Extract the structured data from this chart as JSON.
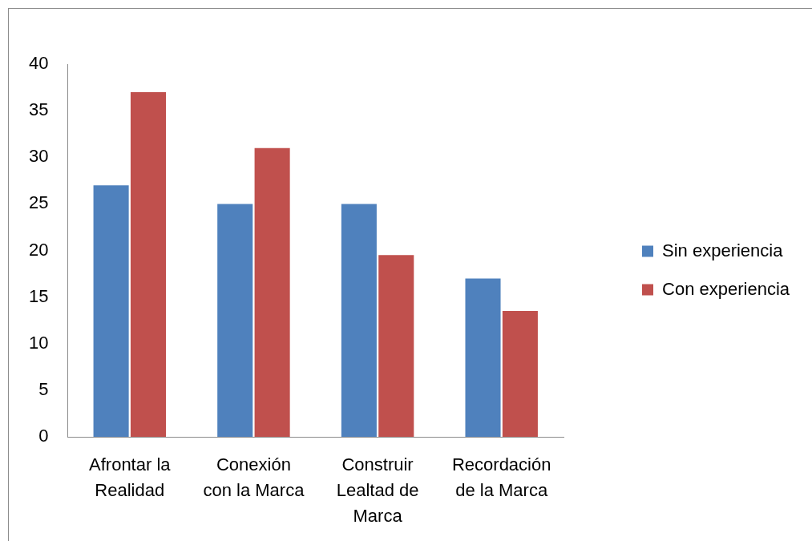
{
  "chart_data": {
    "type": "bar",
    "categories": [
      "Afrontar la Realidad",
      "Conexión con la Marca",
      "Construir Lealtad de Marca",
      "Recordación de la Marca"
    ],
    "series": [
      {
        "name": "Sin experiencia",
        "color": "#4f81bd",
        "values": [
          27,
          25,
          25,
          17
        ]
      },
      {
        "name": "Con experiencia",
        "color": "#c0504d",
        "values": [
          37,
          31,
          19.5,
          13.5
        ]
      }
    ],
    "ylim": [
      0,
      40
    ],
    "yticks": [
      0,
      5,
      10,
      15,
      20,
      25,
      30,
      35,
      40
    ],
    "grid": false,
    "legend": "right"
  }
}
